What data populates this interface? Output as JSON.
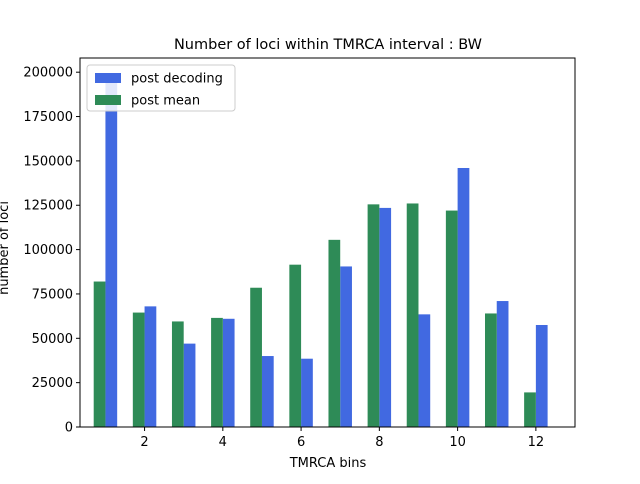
{
  "chart_data": {
    "type": "bar",
    "title": "Number of loci within TMRCA interval : BW",
    "xlabel": "TMRCA bins",
    "ylabel": "number of loci",
    "x": [
      1,
      2,
      3,
      4,
      5,
      6,
      7,
      8,
      9,
      10,
      11,
      12
    ],
    "xticks": [
      "2",
      "4",
      "6",
      "8",
      "10",
      "12"
    ],
    "xtick_values": [
      2,
      4,
      6,
      8,
      10,
      12
    ],
    "xlim": [
      0.35,
      13.0
    ],
    "ylim": [
      0,
      208000
    ],
    "yticks": [
      "0",
      "25000",
      "50000",
      "75000",
      "100000",
      "125000",
      "150000",
      "175000",
      "200000"
    ],
    "ytick_values": [
      0,
      25000,
      50000,
      75000,
      100000,
      125000,
      150000,
      175000,
      200000
    ],
    "series": [
      {
        "name": "post decoding",
        "color": "#4169e1",
        "offset": 0.15,
        "values": [
          195000,
          68000,
          47000,
          61000,
          40000,
          38500,
          90500,
          123500,
          63500,
          146000,
          71000,
          57500
        ]
      },
      {
        "name": "post mean",
        "color": "#2e8b57",
        "offset": -0.15,
        "values": [
          82000,
          64500,
          59500,
          61500,
          78500,
          91500,
          105500,
          125500,
          126000,
          122000,
          64000,
          19500
        ]
      }
    ],
    "legend_position": "top-left",
    "grid": false
  }
}
